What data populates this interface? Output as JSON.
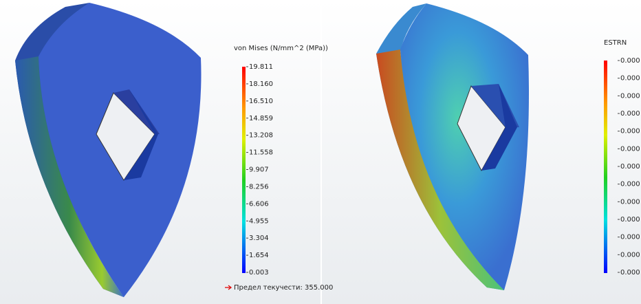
{
  "left": {
    "legend": {
      "title": "von Mises (N/mm^2 (MPa))",
      "labels": [
        "19.811",
        "18.160",
        "16.510",
        "14.859",
        "13.208",
        "11.558",
        "9.907",
        "8.256",
        "6.606",
        "4.955",
        "3.304",
        "1.654",
        "0.003"
      ]
    },
    "yield_label": "Предел текучести: 355.000"
  },
  "right": {
    "legend": {
      "title": "ESTRN",
      "labels": [
        "0.000",
        "0.000",
        "0.000",
        "0.000",
        "0.000",
        "0.000",
        "0.000",
        "0.000",
        "0.000",
        "0.000",
        "0.000",
        "0.000",
        "0.000"
      ]
    }
  }
}
